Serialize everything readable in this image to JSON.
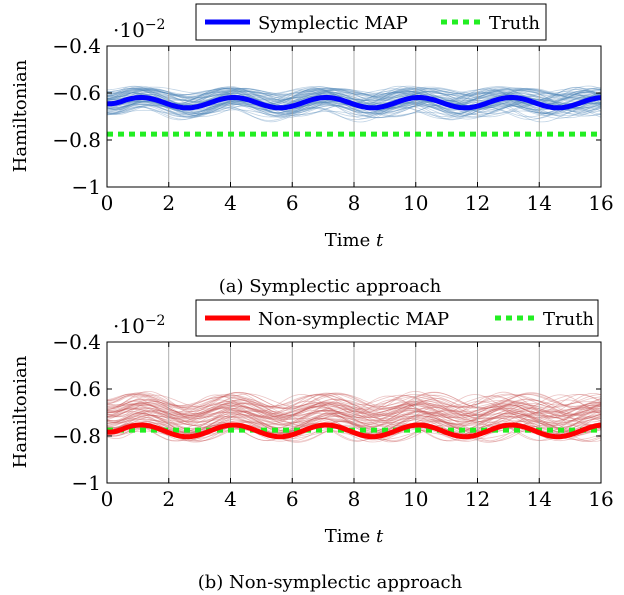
{
  "chart_data": [
    {
      "type": "line",
      "caption": "(a) Symplectic approach",
      "xlabel_text": "Time ",
      "xlabel_var": "t",
      "ylabel": "Hamiltonian",
      "scale_base": "·10",
      "scale_exp": "−2",
      "xlim": [
        0,
        16
      ],
      "ylim": [
        -1,
        -0.4
      ],
      "xticks": [
        0,
        2,
        4,
        6,
        8,
        10,
        12,
        14,
        16
      ],
      "xtick_labels": [
        "0",
        "2",
        "4",
        "6",
        "8",
        "10",
        "12",
        "14",
        "16"
      ],
      "yticks": [
        -1,
        -0.8,
        -0.6,
        -0.4
      ],
      "ytick_labels": [
        "−1",
        "−0.8",
        "−0.6",
        "−0.4"
      ],
      "grid": "vertical",
      "legend_position": "top",
      "series": [
        {
          "name": "Symplectic MAP",
          "color": "#0000ff",
          "style": "solid",
          "mean": -0.641,
          "amplitude": 0.022,
          "period": 3.0,
          "phase": 0.35,
          "damp_start": 0.8
        },
        {
          "name": "Truth",
          "color": "#22ee22",
          "style": "dashed",
          "value": -0.775
        }
      ],
      "samples": {
        "count": 70,
        "color": "#4f86b8",
        "mean_center": -0.64,
        "spread": 0.05
      }
    },
    {
      "type": "line",
      "caption": "(b) Non-symplectic approach",
      "xlabel_text": "Time ",
      "xlabel_var": "t",
      "ylabel": "Hamiltonian",
      "scale_base": "·10",
      "scale_exp": "−2",
      "xlim": [
        0,
        16
      ],
      "ylim": [
        -1,
        -0.4
      ],
      "xticks": [
        0,
        2,
        4,
        6,
        8,
        10,
        12,
        14,
        16
      ],
      "xtick_labels": [
        "0",
        "2",
        "4",
        "6",
        "8",
        "10",
        "12",
        "14",
        "16"
      ],
      "yticks": [
        -1,
        -0.8,
        -0.6,
        -0.4
      ],
      "ytick_labels": [
        "−1",
        "−0.8",
        "−0.6",
        "−0.4"
      ],
      "grid": "vertical",
      "legend_position": "top",
      "series": [
        {
          "name": "Non-symplectic MAP",
          "color": "#ff0000",
          "style": "solid",
          "mean": -0.778,
          "amplitude": 0.025,
          "period": 3.0,
          "phase": 0.35,
          "damp_start": 0.8
        },
        {
          "name": "Truth",
          "color": "#22ee22",
          "style": "dashed",
          "value": -0.775
        }
      ],
      "samples": {
        "count": 70,
        "color": "#c85a5a",
        "mean_center": -0.72,
        "spread": 0.075
      }
    }
  ]
}
